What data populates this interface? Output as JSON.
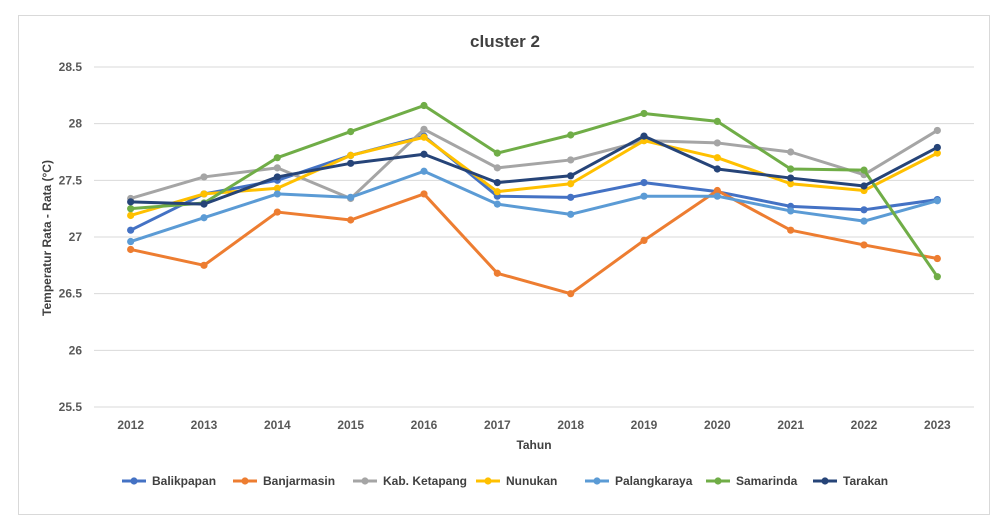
{
  "chart_data": {
    "type": "line",
    "title": "cluster 2",
    "xlabel": "Tahun",
    "ylabel": "Temperatur Rata - Rata (°C)",
    "ylim": [
      25.5,
      28.5
    ],
    "yticks": [
      "25.5",
      "26",
      "26.5",
      "27",
      "27.5",
      "28",
      "28.5"
    ],
    "grid": "horizontal",
    "legend": "bottom",
    "categories": [
      "2012",
      "2013",
      "2014",
      "2015",
      "2016",
      "2017",
      "2018",
      "2019",
      "2020",
      "2021",
      "2022",
      "2023"
    ],
    "series": [
      {
        "name": "Balikpapan",
        "color": "#4472C4",
        "values": [
          27.06,
          27.38,
          27.5,
          27.72,
          27.89,
          27.36,
          27.35,
          27.48,
          27.4,
          27.27,
          27.24,
          27.33
        ]
      },
      {
        "name": "Banjarmasin",
        "color": "#ED7D31",
        "values": [
          26.89,
          26.75,
          27.22,
          27.15,
          27.38,
          26.68,
          26.5,
          26.97,
          27.41,
          27.06,
          26.93,
          26.81
        ]
      },
      {
        "name": "Kab. Ketapang",
        "color": "#A5A5A5",
        "values": [
          27.34,
          27.53,
          27.61,
          27.34,
          27.95,
          27.61,
          27.68,
          27.85,
          27.83,
          27.75,
          27.55,
          27.94
        ]
      },
      {
        "name": "Nunukan",
        "color": "#FFC000",
        "values": [
          27.19,
          27.38,
          27.43,
          27.72,
          27.88,
          27.4,
          27.47,
          27.85,
          27.7,
          27.47,
          27.41,
          27.74
        ]
      },
      {
        "name": "Palangkaraya",
        "color": "#5B9BD5",
        "values": [
          26.96,
          27.17,
          27.38,
          27.35,
          27.58,
          27.29,
          27.2,
          27.36,
          27.36,
          27.23,
          27.14,
          27.32
        ]
      },
      {
        "name": "Samarinda",
        "color": "#70AD47",
        "values": [
          27.25,
          27.3,
          27.7,
          27.93,
          28.16,
          27.74,
          27.9,
          28.09,
          28.02,
          27.6,
          27.59,
          26.65
        ]
      },
      {
        "name": "Tarakan",
        "color": "#264478",
        "values": [
          27.31,
          27.29,
          27.53,
          27.65,
          27.73,
          27.48,
          27.54,
          27.89,
          27.6,
          27.52,
          27.45,
          27.79
        ]
      }
    ]
  }
}
